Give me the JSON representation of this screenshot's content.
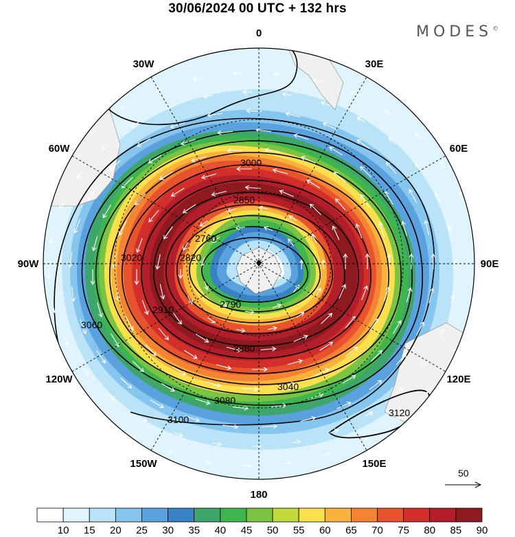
{
  "title": "30/06/2024  00 UTC  + 132 hrs",
  "logo": "MODES",
  "logo_mark": "©",
  "longitude_labels": [
    {
      "text": "0",
      "lon": 0
    },
    {
      "text": "30E",
      "lon": 30
    },
    {
      "text": "60E",
      "lon": 60
    },
    {
      "text": "90E",
      "lon": 90
    },
    {
      "text": "120E",
      "lon": 120
    },
    {
      "text": "150E",
      "lon": 150
    },
    {
      "text": "180",
      "lon": 180
    },
    {
      "text": "150W",
      "lon": -150
    },
    {
      "text": "120W",
      "lon": -120
    },
    {
      "text": "90W",
      "lon": -90
    },
    {
      "text": "60W",
      "lon": -60
    },
    {
      "text": "30W",
      "lon": -30
    }
  ],
  "reference_vector": "50",
  "colorbar": {
    "ticks": [
      "10",
      "15",
      "20",
      "25",
      "30",
      "35",
      "40",
      "45",
      "50",
      "55",
      "60",
      "65",
      "70",
      "75",
      "80",
      "85",
      "90"
    ],
    "colors": [
      "#ffffff",
      "#dff4fc",
      "#b9e3f7",
      "#86c5ee",
      "#5aa2dd",
      "#3a82c6",
      "#3fa66b",
      "#3fb54e",
      "#7bc342",
      "#c3da3d",
      "#fbe04d",
      "#f7b33c",
      "#f28433",
      "#e6532c",
      "#d22f2b",
      "#b21f2a",
      "#8c1a1f"
    ]
  },
  "contour_labels": [
    "2760",
    "2790",
    "2820",
    "2850",
    "2880",
    "2910",
    "3000",
    "3020",
    "3040",
    "3060",
    "3080",
    "3100",
    "3120"
  ],
  "colors": {
    "land": "#f0f0f0",
    "contour": "#000000",
    "vector": "#ffffff"
  }
}
